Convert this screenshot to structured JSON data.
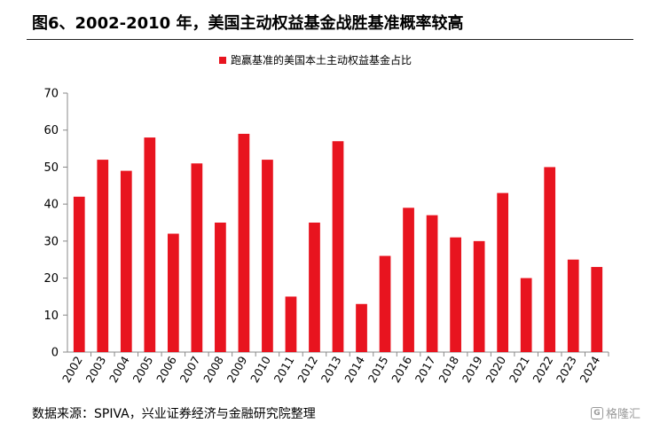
{
  "header": {
    "title": "图6、2002-2010 年，美国主动权益基金战胜基准概率较高"
  },
  "footer": {
    "source": "数据来源：SPIVA，兴业证券经济与金融研究院整理"
  },
  "watermark": {
    "text": "格隆汇",
    "icon": "g-logo-icon"
  },
  "colors": {
    "bar": "#e8141f",
    "axis": "#888888",
    "rule": "#222222"
  },
  "chart_data": {
    "type": "bar",
    "categories": [
      "2002",
      "2003",
      "2004",
      "2005",
      "2006",
      "2007",
      "2008",
      "2009",
      "2010",
      "2011",
      "2012",
      "2013",
      "2014",
      "2015",
      "2016",
      "2017",
      "2018",
      "2019",
      "2020",
      "2021",
      "2022",
      "2023",
      "2024"
    ],
    "series": [
      {
        "name": "跑赢基准的美国本土主动权益基金占比",
        "values": [
          42,
          52,
          49,
          58,
          32,
          51,
          35,
          59,
          52,
          15,
          35,
          57,
          13,
          26,
          39,
          37,
          31,
          30,
          43,
          20,
          50,
          25,
          23
        ]
      }
    ],
    "yticks": [
      0,
      10,
      20,
      30,
      40,
      50,
      60,
      70
    ],
    "ylim": [
      0,
      70
    ],
    "grid": false,
    "legend": "top-center",
    "xlabel": "",
    "ylabel": ""
  }
}
